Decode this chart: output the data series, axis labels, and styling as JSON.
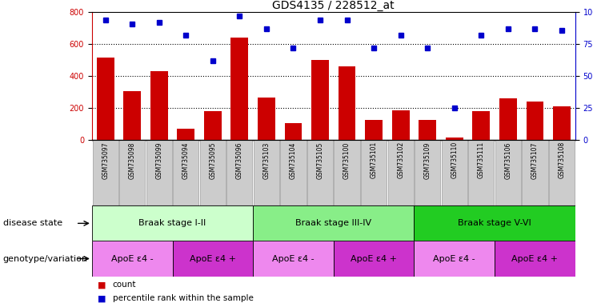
{
  "title": "GDS4135 / 228512_at",
  "samples": [
    "GSM735097",
    "GSM735098",
    "GSM735099",
    "GSM735094",
    "GSM735095",
    "GSM735096",
    "GSM735103",
    "GSM735104",
    "GSM735105",
    "GSM735100",
    "GSM735101",
    "GSM735102",
    "GSM735109",
    "GSM735110",
    "GSM735111",
    "GSM735106",
    "GSM735107",
    "GSM735108"
  ],
  "counts": [
    515,
    305,
    430,
    70,
    180,
    640,
    265,
    105,
    500,
    460,
    125,
    185,
    125,
    15,
    180,
    260,
    240,
    210
  ],
  "percentiles": [
    94,
    91,
    92,
    82,
    62,
    97,
    87,
    72,
    94,
    94,
    72,
    82,
    72,
    25,
    82,
    87,
    87,
    86
  ],
  "bar_color": "#cc0000",
  "dot_color": "#0000cc",
  "ylim_left": [
    0,
    800
  ],
  "ylim_right": [
    0,
    100
  ],
  "yticks_left": [
    0,
    200,
    400,
    600,
    800
  ],
  "yticks_right": [
    0,
    25,
    50,
    75,
    100
  ],
  "ytick_labels_right": [
    "0",
    "25",
    "50",
    "75",
    "100%"
  ],
  "disease_stages": [
    {
      "label": "Braak stage I-II",
      "start": 0,
      "end": 6,
      "color": "#ccffcc"
    },
    {
      "label": "Braak stage III-IV",
      "start": 6,
      "end": 12,
      "color": "#88ee88"
    },
    {
      "label": "Braak stage V-VI",
      "start": 12,
      "end": 18,
      "color": "#22cc22"
    }
  ],
  "genotype_groups": [
    {
      "label": "ApoE ε4 -",
      "start": 0,
      "end": 3,
      "color": "#ee88ee"
    },
    {
      "label": "ApoE ε4 +",
      "start": 3,
      "end": 6,
      "color": "#cc33cc"
    },
    {
      "label": "ApoE ε4 -",
      "start": 6,
      "end": 9,
      "color": "#ee88ee"
    },
    {
      "label": "ApoE ε4 +",
      "start": 9,
      "end": 12,
      "color": "#cc33cc"
    },
    {
      "label": "ApoE ε4 -",
      "start": 12,
      "end": 15,
      "color": "#ee88ee"
    },
    {
      "label": "ApoE ε4 +",
      "start": 15,
      "end": 18,
      "color": "#cc33cc"
    }
  ],
  "disease_label": "disease state",
  "genotype_label": "genotype/variation",
  "legend_count": "count",
  "legend_percentile": "percentile rank within the sample",
  "tick_bg_color": "#cccccc",
  "title_fontsize": 10,
  "axis_fontsize": 7,
  "label_fontsize": 8,
  "sample_fontsize": 5.5,
  "annotation_fontsize": 8
}
